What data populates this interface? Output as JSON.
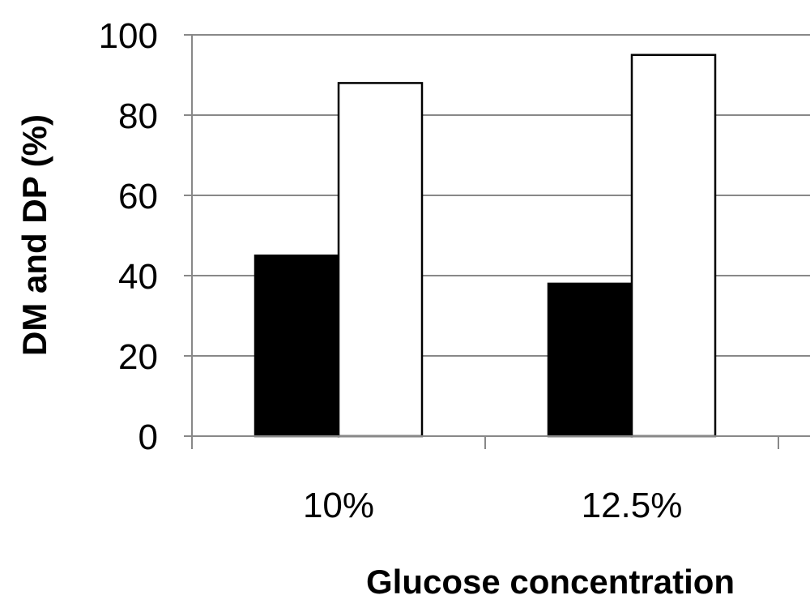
{
  "chart_data": {
    "type": "bar",
    "title": "",
    "xlabel": "Glucose concentration",
    "ylabel": "DM and DP (%)",
    "categories": [
      "10%",
      "12.5%"
    ],
    "series": [
      {
        "values": [
          45,
          38
        ],
        "color": "#000000"
      },
      {
        "values": [
          88,
          95
        ],
        "color": "#ffffff"
      }
    ],
    "ylim": [
      0,
      100
    ],
    "yticks": [
      "0",
      "20",
      "40",
      "60",
      "80",
      "100"
    ],
    "grid": true,
    "legend": "none"
  }
}
